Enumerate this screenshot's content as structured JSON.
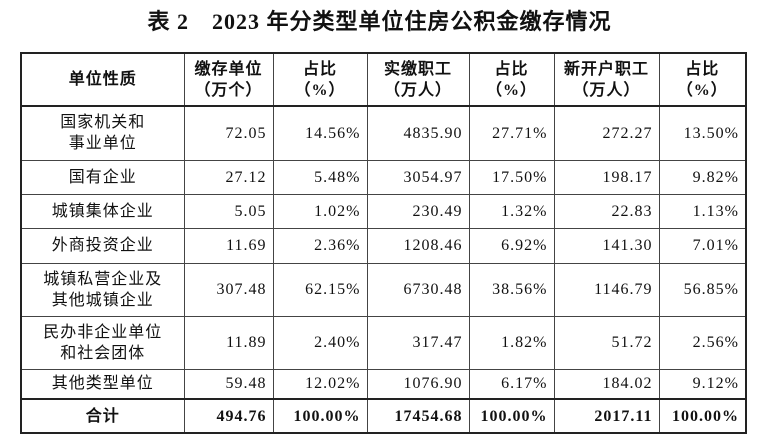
{
  "title": "表 2　2023 年分类型单位住房公积金缴存情况",
  "table": {
    "header": [
      "单位性质",
      "缴存单位\n（万个）",
      "占比\n（%）",
      "实缴职工\n（万人）",
      "占比\n（%）",
      "新开户职工\n（万人）",
      "占比\n（%）"
    ],
    "rows": [
      [
        "国家机关和\n事业单位",
        "72.05",
        "14.56%",
        "4835.90",
        "27.71%",
        "272.27",
        "13.50%"
      ],
      [
        "国有企业",
        "27.12",
        "5.48%",
        "3054.97",
        "17.50%",
        "198.17",
        "9.82%"
      ],
      [
        "城镇集体企业",
        "5.05",
        "1.02%",
        "230.49",
        "1.32%",
        "22.83",
        "1.13%"
      ],
      [
        "外商投资企业",
        "11.69",
        "2.36%",
        "1208.46",
        "6.92%",
        "141.30",
        "7.01%"
      ],
      [
        "城镇私营企业及\n其他城镇企业",
        "307.48",
        "62.15%",
        "6730.48",
        "38.56%",
        "1146.79",
        "56.85%"
      ],
      [
        "民办非企业单位\n和社会团体",
        "11.89",
        "2.40%",
        "317.47",
        "1.82%",
        "51.72",
        "2.56%"
      ],
      [
        "其他类型单位",
        "59.48",
        "12.02%",
        "1076.90",
        "6.17%",
        "184.02",
        "9.12%"
      ]
    ],
    "total": [
      "合计",
      "494.76",
      "100.00%",
      "17454.68",
      "100.00%",
      "2017.11",
      "100.00%"
    ]
  }
}
